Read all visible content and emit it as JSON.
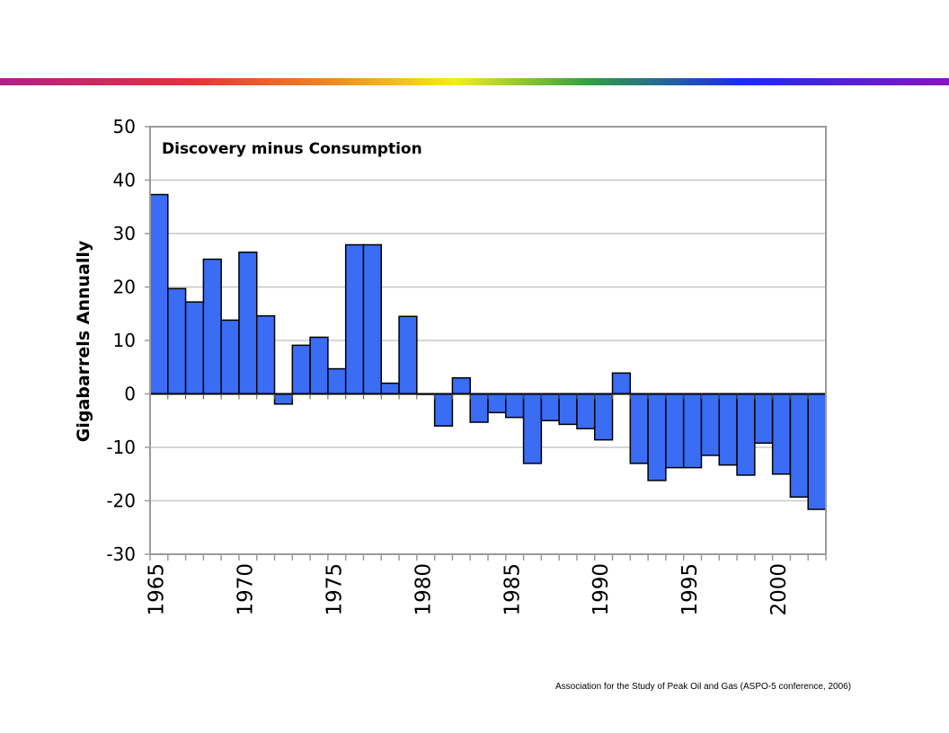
{
  "slide": {
    "caption": "Association  for the Study of Peak Oil  and Gas (ASPO-5 conference, 2006)"
  },
  "chart_data": {
    "type": "bar",
    "title": "Discovery minus Consumption",
    "xlabel": "",
    "ylabel": "Gigabarrels Annually",
    "ylim": [
      -30,
      50
    ],
    "yticks": [
      50,
      40,
      30,
      20,
      10,
      0,
      -10,
      -20,
      -30
    ],
    "xticks": [
      "1965",
      "1970",
      "1975",
      "1980",
      "1985",
      "1990",
      "1995",
      "2000"
    ],
    "grid": true,
    "bar_color": "#3a6cf4",
    "categories": [
      1965,
      1966,
      1967,
      1968,
      1969,
      1970,
      1971,
      1972,
      1973,
      1974,
      1975,
      1976,
      1977,
      1978,
      1979,
      1980,
      1981,
      1982,
      1983,
      1984,
      1985,
      1986,
      1987,
      1988,
      1989,
      1990,
      1991,
      1992,
      1993,
      1994,
      1995,
      1996,
      1997,
      1998,
      1999,
      2000,
      2001,
      2002
    ],
    "values": [
      37.3,
      19.7,
      17.2,
      25.2,
      13.8,
      26.5,
      14.6,
      -1.9,
      9.1,
      10.6,
      4.7,
      27.9,
      27.9,
      2.0,
      14.5,
      0,
      -6.0,
      3.0,
      -5.3,
      -3.5,
      -4.4,
      -13.0,
      -5.0,
      -5.7,
      -6.5,
      -8.6,
      3.9,
      -13.0,
      -16.2,
      -13.8,
      -13.8,
      -11.5,
      -13.3,
      -15.2,
      -9.2,
      -15.0,
      -19.3,
      -21.6
    ]
  }
}
